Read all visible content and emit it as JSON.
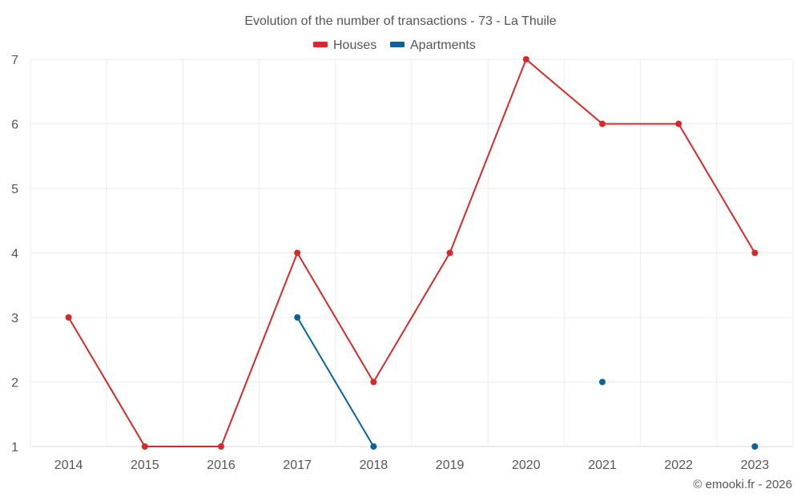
{
  "chart_data": {
    "type": "line",
    "title": "Evolution of the number of transactions - 73 - La Thuile",
    "categories": [
      "2014",
      "2015",
      "2016",
      "2017",
      "2018",
      "2019",
      "2020",
      "2021",
      "2022",
      "2023"
    ],
    "series": [
      {
        "name": "Houses",
        "color": "#d42a2a",
        "values": [
          3,
          1,
          1,
          4,
          2,
          4,
          7,
          6,
          6,
          4
        ]
      },
      {
        "name": "Apartments",
        "color": "#08649a",
        "values": [
          null,
          null,
          null,
          3,
          1,
          null,
          null,
          2,
          null,
          1
        ]
      }
    ],
    "ylim": [
      1,
      7
    ],
    "yticks": [
      1,
      2,
      3,
      4,
      5,
      6,
      7
    ],
    "legend_position": "top-center",
    "grid": true,
    "credit": "© emooki.fr - 2026"
  }
}
